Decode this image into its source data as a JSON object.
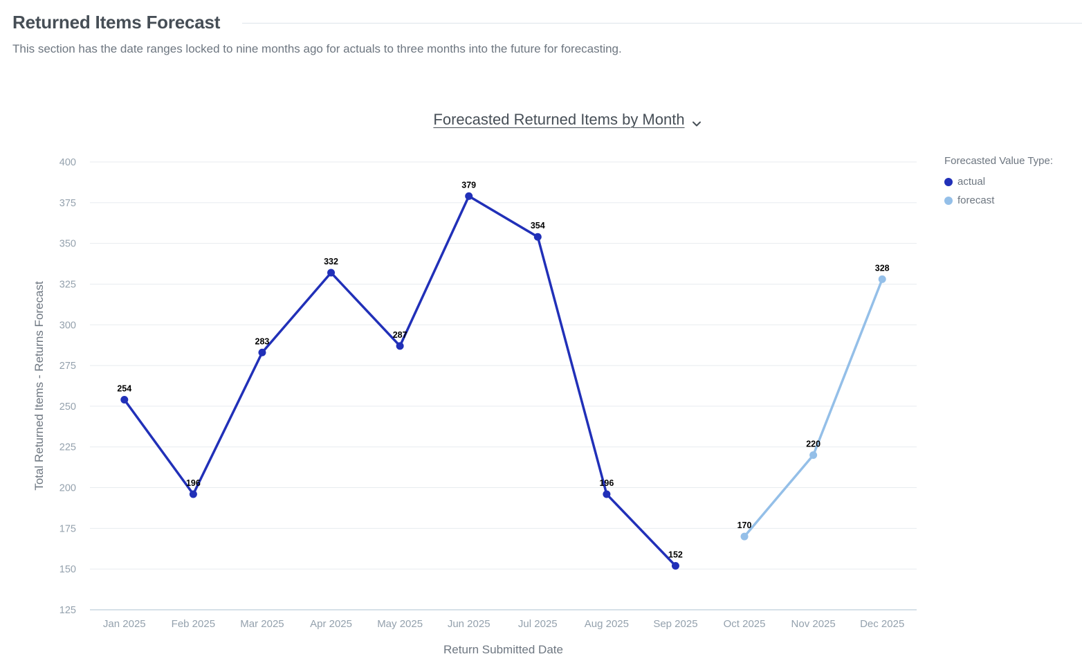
{
  "section": {
    "title": "Returned Items Forecast",
    "description": "This section has the date ranges locked to nine months ago for actuals to three months into the future for forecasting."
  },
  "chart_title": "Forecasted Returned Items by Month",
  "legend": {
    "title": "Forecasted Value Type:",
    "items": [
      {
        "name": "actual",
        "color": "#2130b8"
      },
      {
        "name": "forecast",
        "color": "#94bfe8"
      }
    ]
  },
  "chart_data": {
    "type": "line",
    "title": "Forecasted Returned Items by Month",
    "xlabel": "Return Submitted Date",
    "ylabel": "Total Returned Items - Returns Forecast",
    "ylim": [
      125,
      400
    ],
    "yticks": [
      125,
      150,
      175,
      200,
      225,
      250,
      275,
      300,
      325,
      350,
      375,
      400
    ],
    "categories": [
      "Jan 2025",
      "Feb 2025",
      "Mar 2025",
      "Apr 2025",
      "May 2025",
      "Jun 2025",
      "Jul 2025",
      "Aug 2025",
      "Sep 2025",
      "Oct 2025",
      "Nov 2025",
      "Dec 2025"
    ],
    "series": [
      {
        "name": "actual",
        "color": "#2130b8",
        "values": [
          254,
          196,
          283,
          332,
          287,
          379,
          354,
          196,
          152,
          null,
          null,
          null
        ]
      },
      {
        "name": "forecast",
        "color": "#94bfe8",
        "values": [
          null,
          null,
          null,
          null,
          null,
          null,
          null,
          null,
          null,
          170,
          220,
          328
        ]
      }
    ],
    "data_labels": true,
    "grid": true,
    "legend_position": "right"
  }
}
